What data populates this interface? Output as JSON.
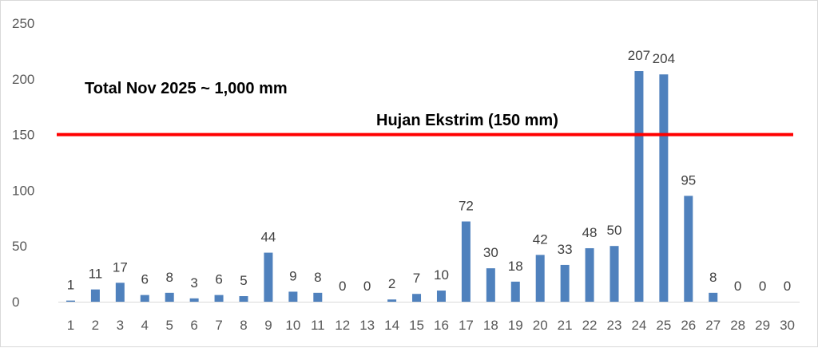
{
  "chart_data": {
    "type": "bar",
    "categories": [
      "1",
      "2",
      "3",
      "4",
      "5",
      "6",
      "7",
      "8",
      "9",
      "10",
      "11",
      "12",
      "13",
      "14",
      "15",
      "16",
      "17",
      "18",
      "19",
      "20",
      "21",
      "22",
      "23",
      "24",
      "25",
      "26",
      "27",
      "28",
      "29",
      "30"
    ],
    "series": [
      {
        "values": [
          1,
          11,
          17,
          6,
          8,
          3,
          6,
          5,
          44,
          9,
          8,
          0,
          0,
          2,
          7,
          10,
          72,
          30,
          18,
          42,
          33,
          48,
          50,
          207,
          204,
          95,
          8,
          0,
          0,
          0
        ]
      }
    ],
    "ylim": [
      0,
      250
    ],
    "yticks": [
      0,
      50,
      100,
      150,
      200,
      250
    ],
    "grid": false,
    "legend": "none",
    "bar_color": "#4f81bd",
    "reference_line": {
      "value": 150,
      "color": "#ff0000",
      "label": "Hujan Ekstrim (150 mm)"
    },
    "annotation": "Total Nov 2025 ~ 1,000 mm",
    "title": "",
    "xlabel": "",
    "ylabel": ""
  }
}
